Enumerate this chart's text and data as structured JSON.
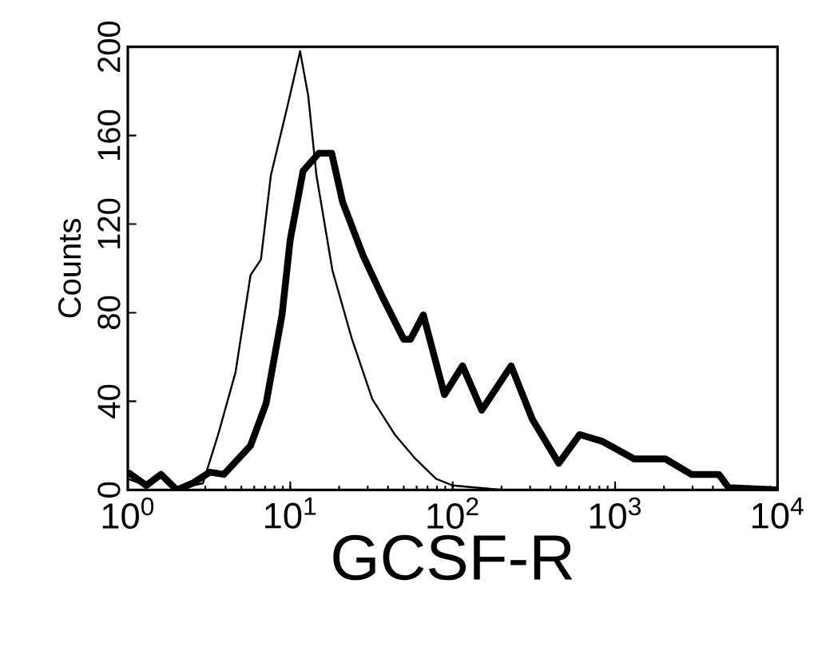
{
  "chart_data": {
    "type": "line",
    "xlabel": "GCSF-R",
    "ylabel": "Counts",
    "log": "x",
    "grid": false,
    "marker": "none",
    "line_style": "solid",
    "xlim": [
      1,
      10000
    ],
    "ylim": [
      0,
      200
    ],
    "xticks": [
      {
        "value": 1,
        "label": "10$^{0}$"
      },
      {
        "value": 10,
        "label": "10$^{1}$"
      },
      {
        "value": 100,
        "label": "10$^{2}$"
      },
      {
        "value": 1000,
        "label": "10$^{3}$"
      },
      {
        "value": 10000,
        "label": "10$^{4}$"
      }
    ],
    "yticks": [
      0,
      40,
      80,
      120,
      160,
      200
    ],
    "series": [
      {
        "color": "#000000",
        "x": [
          1,
          1.3,
          1.6,
          2,
          2.5,
          2.9,
          3.6,
          4.6,
          5.7,
          6.6,
          7.6,
          9.6,
          11.5,
          12.9,
          14.5,
          18.2,
          24,
          32,
          44,
          59,
          79,
          100,
          200,
          1000,
          10000
        ],
        "values": [
          5,
          2,
          6,
          1,
          2,
          3,
          25,
          53,
          97,
          104,
          142,
          173,
          198,
          178,
          142,
          99,
          68,
          41,
          25,
          14,
          5,
          2,
          0,
          0,
          0
        ]
      },
      {
        "color": "#000000",
        "x": [
          1,
          1.3,
          1.6,
          2,
          2.5,
          3.2,
          3.9,
          5.7,
          7.1,
          8.9,
          10,
          12,
          15,
          18,
          21,
          28,
          37,
          50,
          55,
          66,
          89,
          115,
          151,
          229,
          309,
          450,
          605,
          830,
          1310,
          2040,
          2950,
          4360,
          5000,
          10000
        ],
        "values": [
          8,
          2,
          7,
          0,
          3,
          8,
          7,
          20,
          39,
          79,
          113,
          144,
          152,
          152,
          130,
          106,
          87,
          68,
          68,
          79,
          43,
          56,
          36,
          56,
          32,
          12,
          25,
          22,
          14,
          14,
          7,
          7,
          1,
          0
        ]
      }
    ]
  }
}
